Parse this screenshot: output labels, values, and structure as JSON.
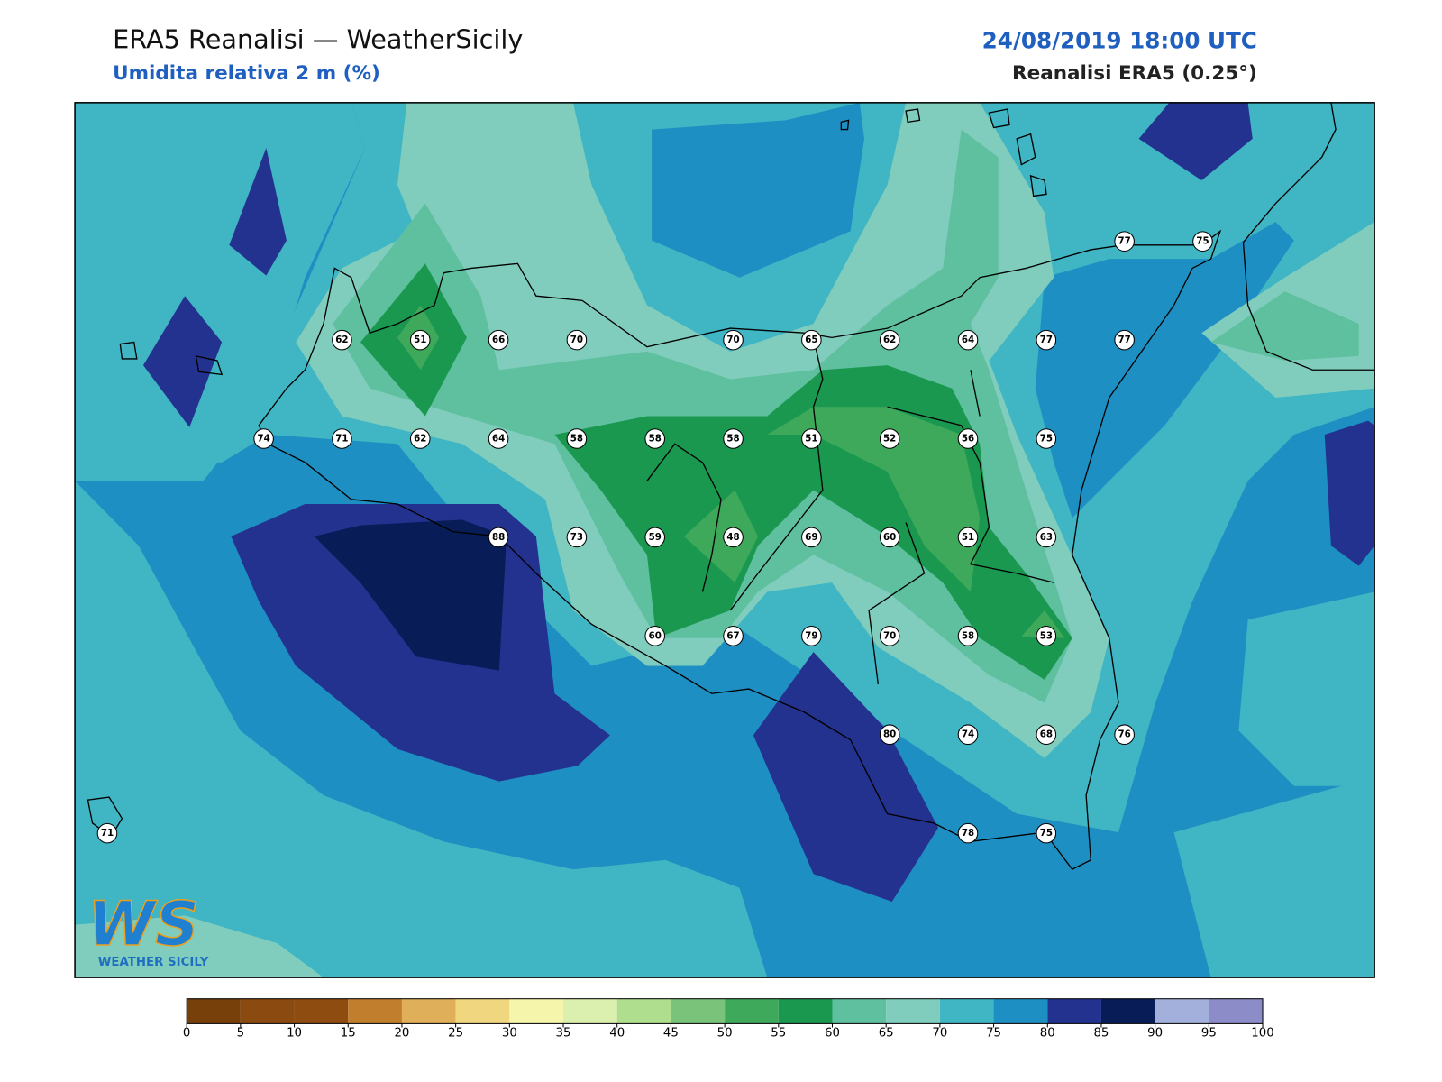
{
  "header": {
    "title": "ERA5 Reanalisi — WeatherSicily",
    "subtitle": "Umidita relativa 2 m (%)",
    "datetime": "24/08/2019 18:00 UTC",
    "source": "Reanalisi ERA5 (0.25°)"
  },
  "stations": {
    "grid": [
      [
        null,
        null,
        null,
        null,
        null,
        null,
        null,
        null,
        null,
        null,
        null,
        null,
        null,
        77,
        75
      ],
      [
        null,
        null,
        null,
        62,
        51,
        66,
        70,
        null,
        70,
        65,
        62,
        64,
        77,
        77,
        null
      ],
      [
        null,
        null,
        74,
        71,
        62,
        64,
        58,
        58,
        58,
        51,
        52,
        56,
        75,
        null,
        null
      ],
      [
        null,
        null,
        null,
        null,
        null,
        88,
        73,
        59,
        48,
        69,
        60,
        51,
        63,
        null,
        null
      ],
      [
        null,
        null,
        null,
        null,
        null,
        null,
        null,
        60,
        67,
        79,
        70,
        58,
        53,
        null,
        null
      ],
      [
        null,
        null,
        null,
        null,
        null,
        null,
        null,
        null,
        null,
        null,
        80,
        74,
        68,
        76,
        null
      ],
      [
        71,
        null,
        null,
        null,
        null,
        null,
        null,
        null,
        null,
        null,
        null,
        78,
        75,
        null,
        null
      ]
    ]
  },
  "colorbar": {
    "ticks": [
      0,
      5,
      10,
      15,
      20,
      25,
      30,
      35,
      40,
      45,
      50,
      55,
      60,
      65,
      70,
      75,
      80,
      85,
      90,
      95,
      100
    ],
    "colors": [
      "#77400b",
      "#8b4a10",
      "#8e4c11",
      "#c17f2d",
      "#dfaf59",
      "#f0d67f",
      "#f6f5ac",
      "#dbefae",
      "#b0de8f",
      "#79c47a",
      "#3fa95b",
      "#1a9850",
      "#5fc0a0",
      "#80cdbd",
      "#40b5c4",
      "#1e8fc2",
      "#23318f",
      "#081d58",
      "#a4b0dc",
      "#8c8cc8"
    ]
  },
  "logo": {
    "mark": "WS",
    "text": "WEATHER SICILY"
  }
}
